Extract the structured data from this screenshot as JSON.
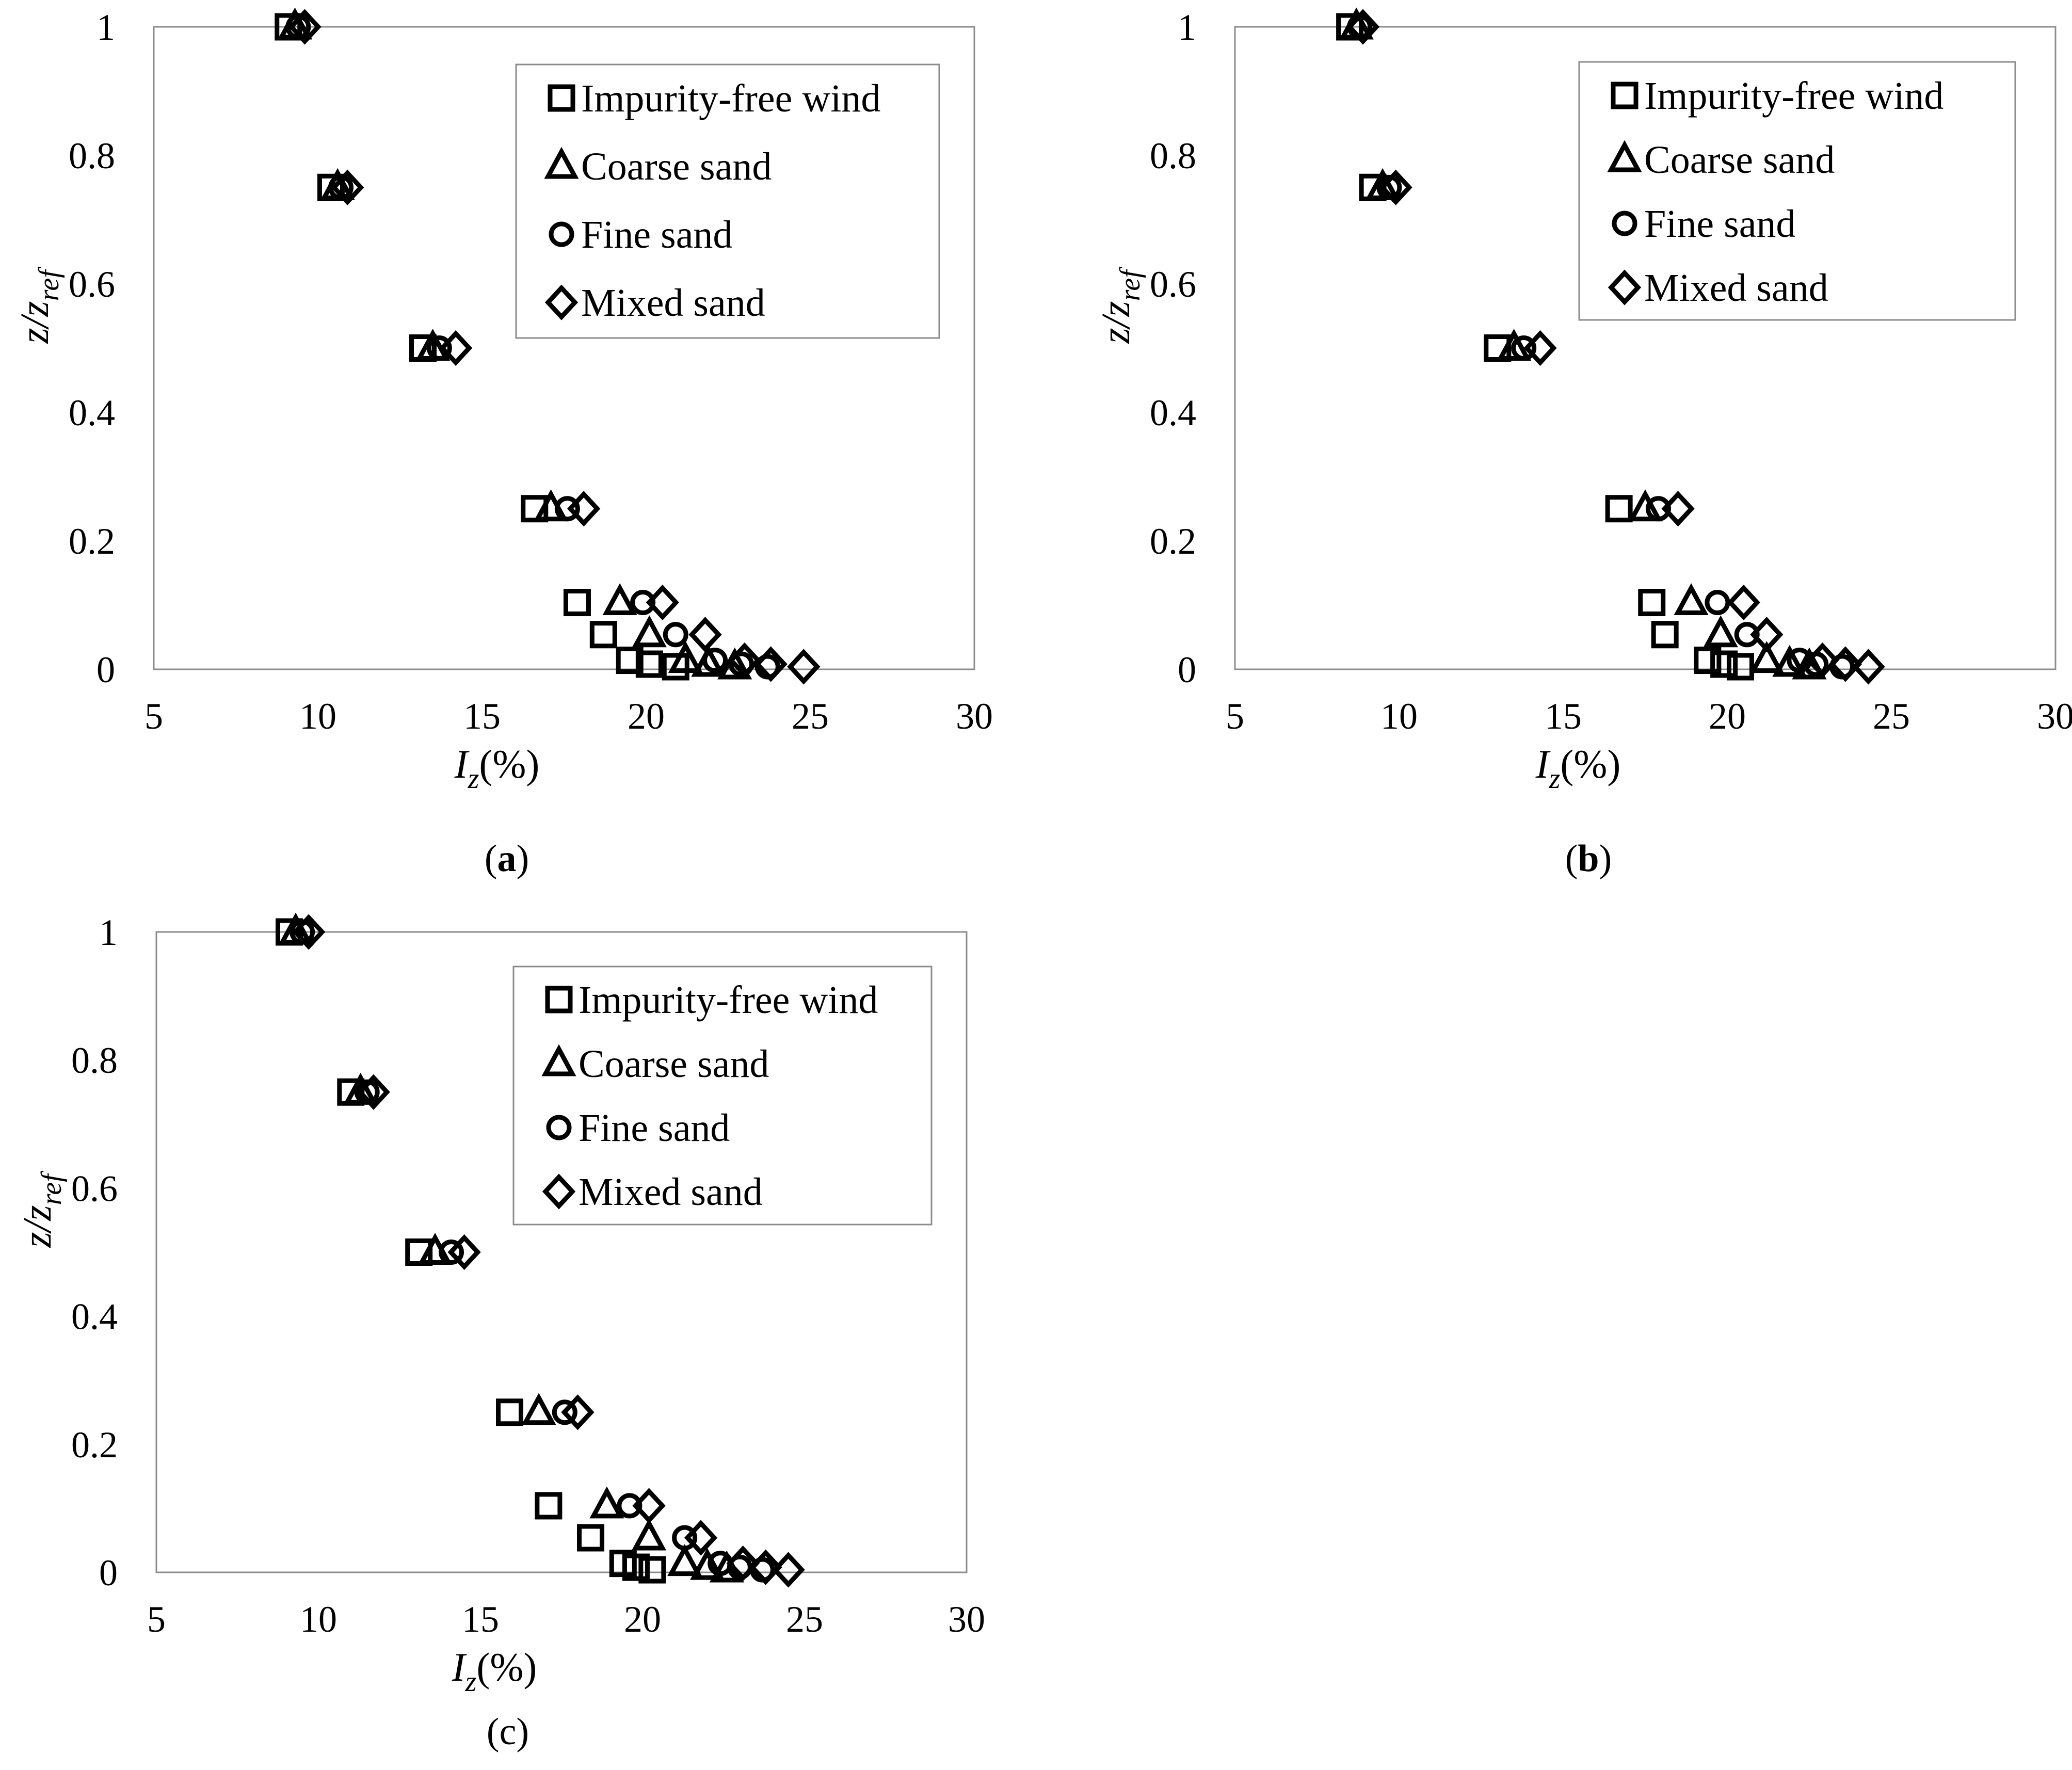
{
  "chart_data": [
    {
      "type": "scatter",
      "panel_label": "a",
      "xlabel_main": "I",
      "xlabel_sub": "z",
      "xlabel_unit": "(%)",
      "ylabel_main": "z/z",
      "ylabel_sub": "ref",
      "xlim": [
        5,
        30
      ],
      "ylim": [
        0,
        1
      ],
      "xticks": [
        "5",
        "10",
        "15",
        "20",
        "25",
        "30"
      ],
      "yticks": [
        "0",
        "0.2",
        "0.4",
        "0.6",
        "0.8",
        "1"
      ],
      "legend": [
        "Impurity-free wind",
        "Coarse sand",
        "Fine sand",
        "Mixed sand"
      ],
      "legend_position": "top-right",
      "series": [
        {
          "name": "Impurity-free wind",
          "marker": "square",
          "x": [
            9.1,
            10.4,
            13.2,
            16.6,
            17.9,
            18.7,
            19.5,
            20.1,
            20.9
          ],
          "y": [
            1.0,
            0.75,
            0.5,
            0.25,
            0.104,
            0.054,
            0.014,
            0.008,
            0.004
          ]
        },
        {
          "name": "Coarse sand",
          "marker": "triangle",
          "x": [
            9.3,
            10.6,
            13.5,
            17.1,
            19.2,
            20.1,
            21.2,
            21.9,
            22.7
          ],
          "y": [
            1.0,
            0.75,
            0.5,
            0.25,
            0.104,
            0.054,
            0.014,
            0.008,
            0.004
          ]
        },
        {
          "name": "Fine sand",
          "marker": "circle",
          "x": [
            9.4,
            10.7,
            13.7,
            17.6,
            19.9,
            20.9,
            22.1,
            22.9,
            23.7
          ],
          "y": [
            1.0,
            0.75,
            0.5,
            0.25,
            0.104,
            0.054,
            0.014,
            0.008,
            0.004
          ]
        },
        {
          "name": "Mixed sand",
          "marker": "diamond",
          "x": [
            9.6,
            10.9,
            14.2,
            18.1,
            20.5,
            21.8,
            23.0,
            23.8,
            24.8
          ],
          "y": [
            1.0,
            0.75,
            0.5,
            0.25,
            0.104,
            0.054,
            0.014,
            0.008,
            0.004
          ]
        }
      ]
    },
    {
      "type": "scatter",
      "panel_label": "b",
      "xlabel_main": "I",
      "xlabel_sub": "z",
      "xlabel_unit": "(%)",
      "ylabel_main": "z/z",
      "ylabel_sub": "ref",
      "xlim": [
        5,
        30
      ],
      "ylim": [
        0,
        1
      ],
      "xticks": [
        "5",
        "10",
        "15",
        "20",
        "25",
        "30"
      ],
      "yticks": [
        "0",
        "0.2",
        "0.4",
        "0.6",
        "0.8",
        "1"
      ],
      "legend": [
        "Impurity-free wind",
        "Coarse sand",
        "Fine sand",
        "Mixed sand"
      ],
      "legend_position": "top-right",
      "series": [
        {
          "name": "Impurity-free wind",
          "marker": "square",
          "x": [
            8.5,
            9.2,
            13.0,
            16.7,
            17.7,
            18.1,
            19.4,
            19.9,
            20.4
          ],
          "y": [
            1.0,
            0.75,
            0.5,
            0.25,
            0.104,
            0.054,
            0.014,
            0.008,
            0.004
          ]
        },
        {
          "name": "Coarse sand",
          "marker": "triangle",
          "x": [
            8.7,
            9.5,
            13.5,
            17.5,
            18.9,
            19.8,
            21.2,
            21.9,
            22.5
          ],
          "y": [
            1.0,
            0.75,
            0.5,
            0.25,
            0.104,
            0.054,
            0.014,
            0.008,
            0.004
          ]
        },
        {
          "name": "Fine sand",
          "marker": "circle",
          "x": [
            8.8,
            9.7,
            13.8,
            17.9,
            19.7,
            20.6,
            22.2,
            22.7,
            23.5
          ],
          "y": [
            1.0,
            0.75,
            0.5,
            0.25,
            0.104,
            0.054,
            0.014,
            0.008,
            0.004
          ]
        },
        {
          "name": "Mixed sand",
          "marker": "diamond",
          "x": [
            8.9,
            9.9,
            14.3,
            18.5,
            20.5,
            21.2,
            22.9,
            23.6,
            24.3
          ],
          "y": [
            1.0,
            0.75,
            0.5,
            0.25,
            0.104,
            0.054,
            0.014,
            0.008,
            0.004
          ]
        }
      ]
    },
    {
      "type": "scatter",
      "panel_label": "c",
      "xlabel_main": "I",
      "xlabel_sub": "z",
      "xlabel_unit": "(%)",
      "ylabel_main": "z/z",
      "ylabel_sub": "ref",
      "xlim": [
        5,
        30
      ],
      "ylim": [
        0,
        1
      ],
      "xticks": [
        "5",
        "10",
        "15",
        "20",
        "25",
        "30"
      ],
      "yticks": [
        "0",
        "0.2",
        "0.4",
        "0.6",
        "0.8",
        "1"
      ],
      "legend": [
        "Impurity-free wind",
        "Coarse sand",
        "Fine sand",
        "Mixed sand"
      ],
      "legend_position": "top-right",
      "series": [
        {
          "name": "Impurity-free wind",
          "marker": "square",
          "x": [
            9.1,
            11.0,
            13.1,
            15.9,
            17.1,
            18.4,
            19.4,
            19.8,
            20.3
          ],
          "y": [
            1.0,
            0.75,
            0.5,
            0.25,
            0.104,
            0.054,
            0.014,
            0.008,
            0.004
          ]
        },
        {
          "name": "Coarse sand",
          "marker": "triangle",
          "x": [
            9.3,
            11.3,
            13.6,
            16.8,
            18.9,
            20.2,
            21.3,
            22.0,
            22.6
          ],
          "y": [
            1.0,
            0.75,
            0.5,
            0.25,
            0.104,
            0.054,
            0.014,
            0.008,
            0.004
          ]
        },
        {
          "name": "Fine sand",
          "marker": "circle",
          "x": [
            9.5,
            11.5,
            14.1,
            17.6,
            19.6,
            21.3,
            22.4,
            23.0,
            23.7
          ],
          "y": [
            1.0,
            0.75,
            0.5,
            0.25,
            0.104,
            0.054,
            0.014,
            0.008,
            0.004
          ]
        },
        {
          "name": "Mixed sand",
          "marker": "diamond",
          "x": [
            9.7,
            11.7,
            14.5,
            18.0,
            20.2,
            21.8,
            23.1,
            23.8,
            24.5
          ],
          "y": [
            1.0,
            0.75,
            0.5,
            0.25,
            0.104,
            0.054,
            0.014,
            0.008,
            0.004
          ]
        }
      ]
    }
  ]
}
